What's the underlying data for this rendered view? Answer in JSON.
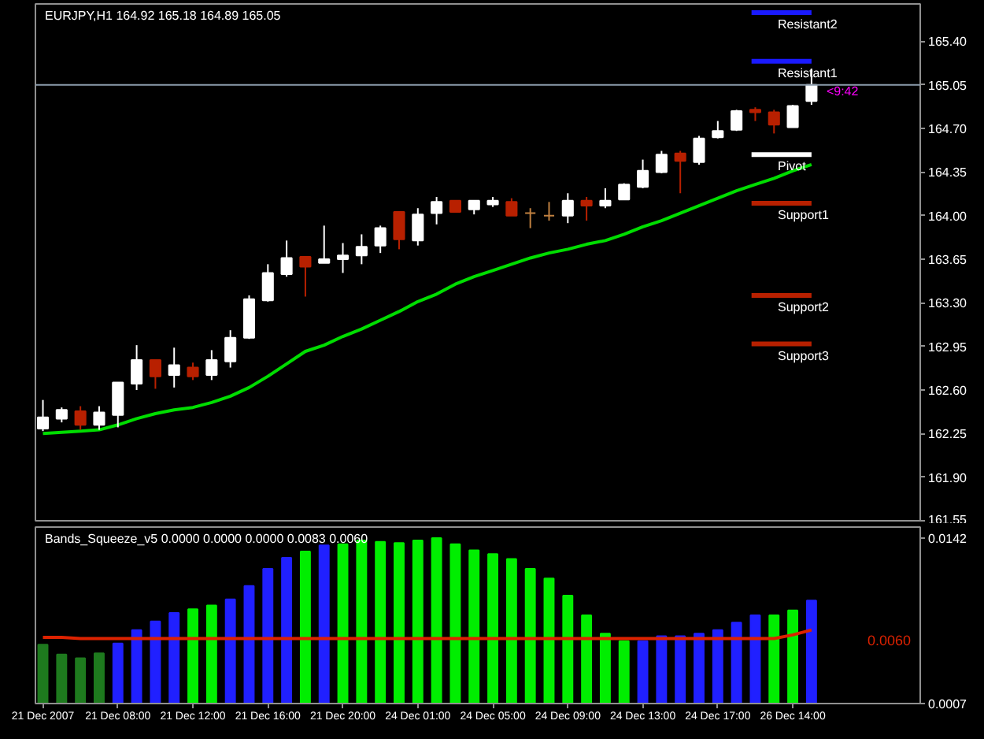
{
  "chart_data": [
    {
      "type": "candlestick",
      "title": "EURJPY,H1 164.92 165.18 164.89 165.05",
      "categories": [
        null,
        null,
        null,
        null,
        null,
        null,
        null,
        null,
        null,
        null,
        null,
        null,
        null,
        null,
        null,
        null,
        null,
        null,
        null,
        null,
        null,
        null,
        null,
        null,
        null,
        null,
        null,
        null,
        null,
        null,
        null,
        null,
        null,
        null,
        null,
        null,
        null,
        null,
        null,
        null,
        null,
        null
      ],
      "ohlc": [
        [
          162.29,
          162.52,
          162.27,
          162.38
        ],
        [
          162.37,
          162.46,
          162.34,
          162.44
        ],
        [
          162.43,
          162.47,
          162.28,
          162.32
        ],
        [
          162.32,
          162.47,
          162.28,
          162.42
        ],
        [
          162.4,
          162.66,
          162.3,
          162.66
        ],
        [
          162.65,
          162.96,
          162.6,
          162.84
        ],
        [
          162.84,
          162.84,
          162.61,
          162.71
        ],
        [
          162.72,
          162.94,
          162.62,
          162.8
        ],
        [
          162.78,
          162.82,
          162.68,
          162.71
        ],
        [
          162.72,
          162.92,
          162.68,
          162.84
        ],
        [
          162.83,
          163.08,
          162.78,
          163.02
        ],
        [
          163.02,
          163.36,
          163.01,
          163.33
        ],
        [
          163.32,
          163.61,
          163.31,
          163.54
        ],
        [
          163.53,
          163.8,
          163.51,
          163.66
        ],
        [
          163.67,
          163.67,
          163.35,
          163.59
        ],
        [
          163.62,
          163.92,
          163.62,
          163.65
        ],
        [
          163.65,
          163.78,
          163.54,
          163.68
        ],
        [
          163.68,
          163.85,
          163.61,
          163.75
        ],
        [
          163.76,
          163.92,
          163.7,
          163.9
        ],
        [
          164.03,
          164.03,
          163.73,
          163.81
        ],
        [
          163.8,
          164.06,
          163.76,
          164.01
        ],
        [
          164.02,
          164.15,
          163.93,
          164.11
        ],
        [
          164.12,
          164.12,
          164.03,
          164.03
        ],
        [
          164.05,
          164.12,
          164.01,
          164.12
        ],
        [
          164.09,
          164.15,
          164.07,
          164.12
        ],
        [
          164.11,
          164.14,
          164.0,
          164.0
        ],
        [
          164.02,
          164.06,
          163.9,
          164.02
        ],
        [
          164.0,
          164.11,
          163.96,
          164.0
        ],
        [
          164.0,
          164.18,
          163.94,
          164.12
        ],
        [
          164.12,
          164.15,
          163.96,
          164.08
        ],
        [
          164.08,
          164.22,
          164.06,
          164.12
        ],
        [
          164.13,
          164.26,
          164.13,
          164.25
        ],
        [
          164.23,
          164.45,
          164.22,
          164.36
        ],
        [
          164.35,
          164.52,
          164.34,
          164.49
        ],
        [
          164.5,
          164.52,
          164.18,
          164.44
        ],
        [
          164.43,
          164.64,
          164.41,
          164.62
        ],
        [
          164.63,
          164.76,
          164.62,
          164.68
        ],
        [
          164.69,
          164.85,
          164.68,
          164.84
        ],
        [
          164.85,
          164.87,
          164.76,
          164.83
        ],
        [
          164.83,
          164.85,
          164.66,
          164.73
        ],
        [
          164.71,
          164.89,
          164.71,
          164.88
        ],
        [
          164.92,
          165.18,
          164.89,
          165.05
        ]
      ],
      "colors": [
        "#ffffff",
        "#ffffff",
        "#b82000",
        "#ffffff",
        "#ffffff",
        "#ffffff",
        "#b82000",
        "#ffffff",
        "#b82000",
        "#ffffff",
        "#ffffff",
        "#ffffff",
        "#ffffff",
        "#ffffff",
        "#b82000",
        "#ffffff",
        "#ffffff",
        "#ffffff",
        "#ffffff",
        "#b82000",
        "#ffffff",
        "#ffffff",
        "#b82000",
        "#ffffff",
        "#ffffff",
        "#b82000",
        "#c08040",
        "#c08040",
        "#ffffff",
        "#b82000",
        "#ffffff",
        "#ffffff",
        "#ffffff",
        "#ffffff",
        "#b82000",
        "#ffffff",
        "#ffffff",
        "#ffffff",
        "#b82000",
        "#b82000",
        "#ffffff",
        "#ffffff"
      ],
      "series": [
        {
          "type": "line",
          "color": "#00dd00",
          "values": [
            162.25,
            162.26,
            162.27,
            162.28,
            162.32,
            162.37,
            162.41,
            162.44,
            162.46,
            162.5,
            162.55,
            162.62,
            162.71,
            162.81,
            162.91,
            162.96,
            163.03,
            163.09,
            163.16,
            163.23,
            163.31,
            163.37,
            163.45,
            163.51,
            163.56,
            163.61,
            163.66,
            163.7,
            163.73,
            163.77,
            163.8,
            163.85,
            163.91,
            163.96,
            164.02,
            164.08,
            164.14,
            164.2,
            164.25,
            164.3,
            164.36,
            164.41
          ]
        }
      ],
      "ylim": [
        161.55,
        165.7
      ],
      "yticks": [
        {
          "value": 161.55,
          "label": "161.55"
        },
        {
          "value": 161.9,
          "label": "161.90"
        },
        {
          "value": 162.25,
          "label": "162.25"
        },
        {
          "value": 162.6,
          "label": "162.60"
        },
        {
          "value": 162.95,
          "label": "162.95"
        },
        {
          "value": 163.3,
          "label": "163.30"
        },
        {
          "value": 163.65,
          "label": "163.65"
        },
        {
          "value": 164.0,
          "label": "164.00"
        },
        {
          "value": 164.35,
          "label": "164.35"
        },
        {
          "value": 164.7,
          "label": "164.70"
        },
        {
          "value": 165.05,
          "label": "165.05"
        },
        {
          "value": 165.4,
          "label": "165.40"
        }
      ],
      "tick_labels": "y",
      "ref_lines": [
        {
          "axis": "y",
          "value": 165.05,
          "color": "#8c9cac"
        },
        {
          "axis": "y",
          "value": 165.63,
          "label": "Resistant2",
          "color": "#1a1aff"
        },
        {
          "axis": "y",
          "value": 165.24,
          "label": "Resistant1",
          "color": "#1a1aff"
        },
        {
          "axis": "y",
          "value": 164.49,
          "label": "Pivot",
          "color": "#ffffff"
        },
        {
          "axis": "y",
          "value": 164.1,
          "label": "Support1",
          "color": "#b82000"
        },
        {
          "axis": "y",
          "value": 163.36,
          "label": "Support2",
          "color": "#b82000"
        },
        {
          "axis": "y",
          "value": 162.97,
          "label": "Support3",
          "color": "#b82000"
        }
      ],
      "annotations": [
        {
          "text": "<9:42",
          "y": 165.0
        }
      ]
    },
    {
      "type": "bar",
      "title": "Bands_Squeeze_v5 0.0000 0.0000 0.0000 0.0083 0.0060",
      "categories": [
        "21 Dec 2007",
        null,
        null,
        null,
        "21 Dec 08:00",
        null,
        null,
        null,
        "21 Dec 12:00",
        null,
        null,
        null,
        "21 Dec 16:00",
        null,
        null,
        null,
        "21 Dec 20:00",
        null,
        null,
        null,
        "24 Dec 01:00",
        null,
        null,
        null,
        "24 Dec 05:00",
        null,
        null,
        null,
        "24 Dec 09:00",
        null,
        null,
        null,
        "24 Dec 13:00",
        null,
        null,
        null,
        "24 Dec 17:00",
        null,
        null,
        null,
        "26 Dec 14:00",
        null
      ],
      "series": [
        {
          "type": "bar",
          "colors": [
            "#1e7a1e",
            "#1e7a1e",
            "#1e7a1e",
            "#1e7a1e",
            "#2020ff",
            "#2020ff",
            "#2020ff",
            "#2020ff",
            "#00ee00",
            "#00ee00",
            "#2020ff",
            "#2020ff",
            "#2020ff",
            "#2020ff",
            "#00ee00",
            "#2020ff",
            "#00ee00",
            "#00ee00",
            "#00ee00",
            "#00ee00",
            "#00ee00",
            "#00ee00",
            "#00ee00",
            "#00ee00",
            "#00ee00",
            "#00ee00",
            "#00ee00",
            "#00ee00",
            "#00ee00",
            "#00ee00",
            "#00ee00",
            "#00ee00",
            "#2020ff",
            "#2020ff",
            "#2020ff",
            "#2020ff",
            "#2020ff",
            "#2020ff",
            "#2020ff",
            "#00ee00",
            "#00ee00",
            "#2020ff"
          ],
          "values": [
            0.0055,
            0.0047,
            0.0044,
            0.0048,
            0.0056,
            0.0067,
            0.0074,
            0.0081,
            0.0084,
            0.0087,
            0.0092,
            0.0103,
            0.0117,
            0.0126,
            0.0131,
            0.0136,
            0.0137,
            0.014,
            0.0139,
            0.0138,
            0.014,
            0.0142,
            0.0137,
            0.0132,
            0.0129,
            0.0125,
            0.0117,
            0.0109,
            0.0095,
            0.0079,
            0.0064,
            0.0058,
            0.0058,
            0.0062,
            0.0062,
            0.0064,
            0.0067,
            0.0073,
            0.0079,
            0.0079,
            0.0083,
            0.0091
          ]
        },
        {
          "type": "line",
          "color": "#dd2200",
          "values": [
            0.0061,
            0.0061,
            0.006,
            0.006,
            0.006,
            0.006,
            0.006,
            0.006,
            0.006,
            0.006,
            0.006,
            0.006,
            0.006,
            0.006,
            0.006,
            0.006,
            0.006,
            0.006,
            0.006,
            0.006,
            0.006,
            0.006,
            0.006,
            0.006,
            0.006,
            0.006,
            0.006,
            0.006,
            0.006,
            0.006,
            0.006,
            0.006,
            0.006,
            0.006,
            0.006,
            0.006,
            0.006,
            0.006,
            0.006,
            0.006,
            0.0063,
            0.0067
          ]
        }
      ],
      "ylim": [
        0.0007,
        0.0151
      ],
      "yticks": [
        0.0007,
        0.0142
      ],
      "annotations": [
        "0.0060"
      ]
    }
  ]
}
